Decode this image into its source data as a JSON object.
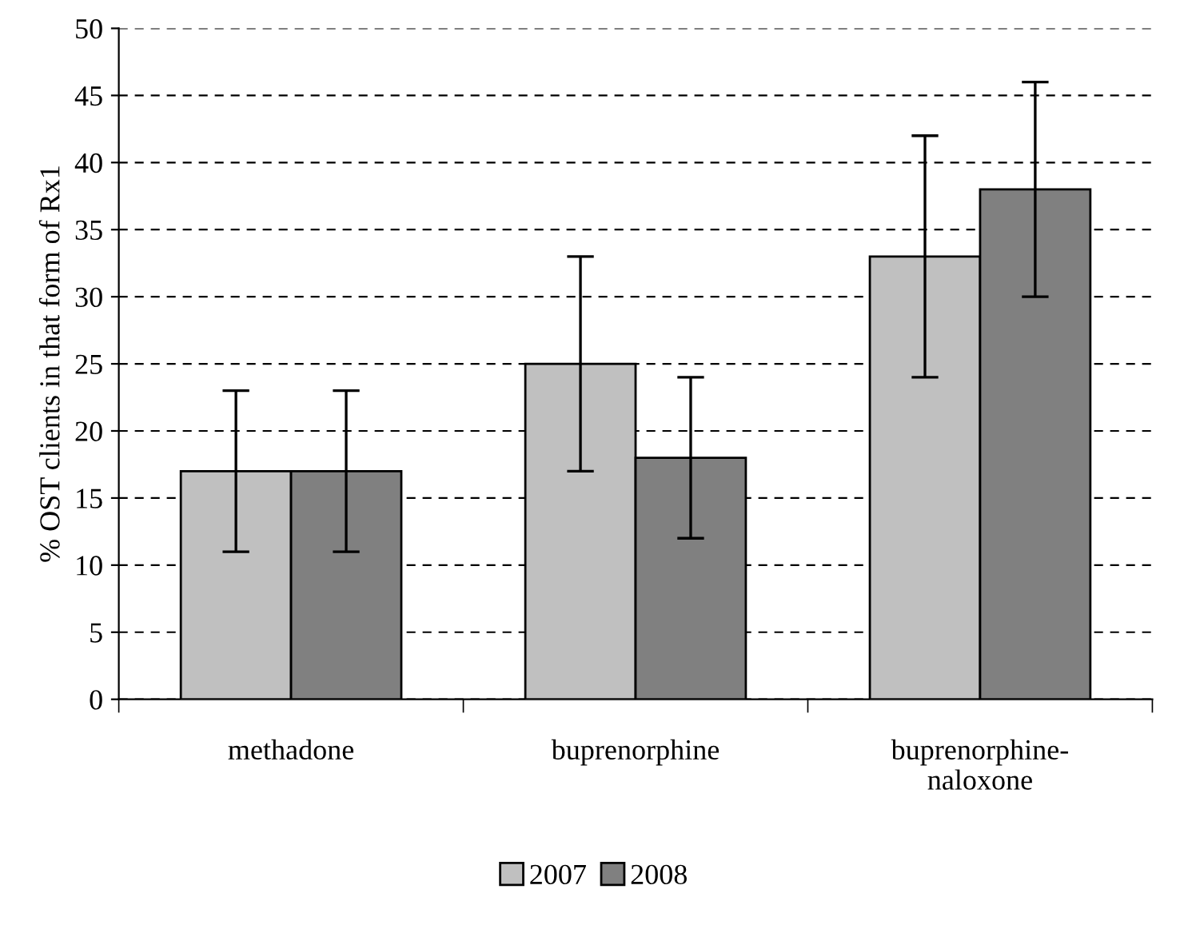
{
  "chart_data": {
    "type": "bar",
    "ylabel": "% OST clients in that form of Rx1",
    "categories": [
      "methadone",
      "buprenorphine",
      "buprenorphine-naloxone"
    ],
    "series": [
      {
        "name": "2007",
        "color": "#c0c0c0",
        "values": [
          17,
          25,
          33
        ],
        "errors": [
          6,
          8,
          9
        ]
      },
      {
        "name": "2008",
        "color": "#808080",
        "values": [
          17,
          18,
          38
        ],
        "errors": [
          6,
          6,
          8
        ]
      }
    ],
    "ylim": [
      0,
      50
    ],
    "yticks": [
      0,
      5,
      10,
      15,
      20,
      25,
      30,
      35,
      40,
      45,
      50
    ],
    "grid": "y",
    "legend": "bottom"
  }
}
